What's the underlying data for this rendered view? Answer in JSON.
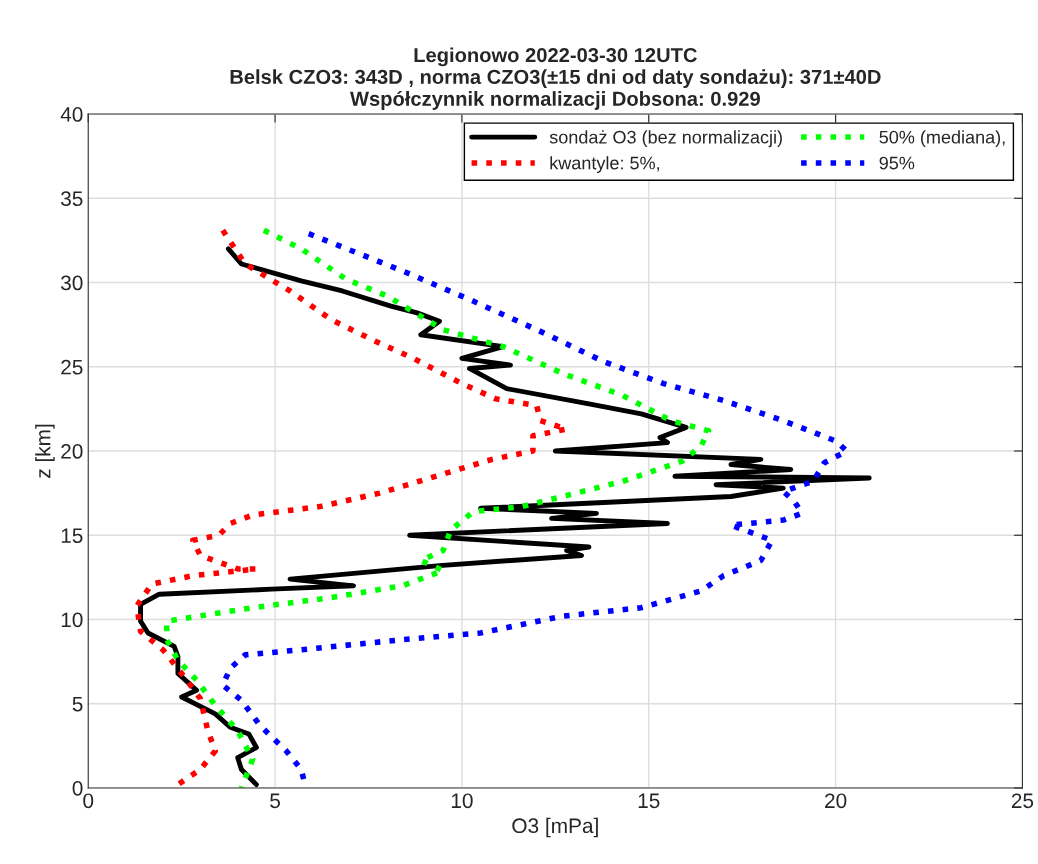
{
  "chart_data": {
    "type": "line",
    "title": "Legionowo 2022-03-30 12UTC\nBelsk CZO3: 343D , norma CZO3(±15 dni od daty sondażu): 371±40D\nWspółczynnik normalizacji Dobsona: 0.929",
    "xlabel": "O3 [mPa]",
    "ylabel": "z [km]",
    "xlim": [
      0,
      25
    ],
    "xticks": [
      0,
      5,
      10,
      15,
      20,
      25
    ],
    "ylim": [
      0,
      40
    ],
    "yticks": [
      0,
      5,
      10,
      15,
      20,
      25,
      30,
      35,
      40
    ],
    "grid": true,
    "legend": "top right",
    "marker": "none",
    "series": [
      {
        "name": "sondaż O3 (bez normalizacji)",
        "color": "#000000",
        "line_style": "solid",
        "x": [
          3.75,
          4.1,
          5.7,
          6.8,
          8.1,
          8.8,
          9.4,
          8.9,
          11.1,
          10.0,
          11.3,
          10.2,
          11.2,
          13.4,
          14.8,
          15.4,
          16.0,
          15.3,
          15.5,
          12.5,
          18.0,
          17.2,
          18.8,
          15.7,
          20.9,
          16.8,
          18.6,
          17.2,
          10.5,
          13.6,
          12.4,
          15.5,
          8.6,
          13.4,
          12.8,
          13.2,
          9.4,
          5.4,
          7.1,
          4.9,
          1.9,
          1.4,
          1.4,
          1.6,
          2.3,
          2.4,
          2.4,
          2.9,
          2.5,
          3.4,
          3.8,
          4.3,
          4.5,
          4.0,
          4.1,
          4.5
        ],
        "values": [
          32.0,
          31.1,
          30.1,
          29.5,
          28.6,
          28.2,
          27.7,
          26.9,
          26.2,
          25.5,
          25.1,
          24.9,
          23.7,
          22.8,
          22.2,
          21.8,
          21.4,
          20.8,
          20.5,
          20.0,
          19.5,
          19.2,
          18.9,
          18.5,
          18.4,
          18.0,
          17.8,
          17.3,
          16.6,
          16.3,
          16.0,
          15.7,
          15.0,
          14.3,
          14.1,
          13.8,
          13.2,
          12.4,
          12.0,
          11.8,
          11.5,
          10.9,
          9.9,
          9.2,
          8.4,
          7.8,
          6.8,
          5.8,
          5.4,
          4.4,
          3.6,
          3.2,
          2.4,
          1.8,
          1.1,
          0.2
        ]
      },
      {
        "name": "kwantyle: 5%,",
        "color": "#ff0000",
        "line_style": "dotted",
        "x": [
          3.6,
          4.2,
          5.4,
          6.5,
          7.7,
          8.7,
          10.0,
          10.9,
          12.0,
          12.1,
          12.8,
          11.9,
          11.9,
          10.8,
          9.6,
          8.4,
          7.8,
          6.2,
          4.4,
          3.8,
          3.5,
          2.8,
          3.0,
          4.0,
          4.5,
          2.8,
          1.7,
          1.3,
          1.4,
          2.0,
          2.5,
          3.0,
          3.2,
          3.4,
          3.0,
          2.4
        ],
        "values": [
          33.1,
          31.1,
          29.5,
          27.8,
          26.5,
          25.5,
          24.0,
          23.1,
          22.7,
          21.8,
          21.3,
          20.9,
          20.0,
          19.5,
          18.7,
          17.9,
          17.5,
          16.7,
          16.2,
          15.7,
          15.0,
          14.7,
          13.8,
          13.0,
          13.0,
          12.6,
          12.1,
          10.8,
          9.3,
          8.2,
          6.8,
          5.3,
          3.4,
          2.2,
          1.1,
          0.2
        ]
      },
      {
        "name": "50% (mediana),",
        "color": "#00ff00",
        "line_style": "dotted",
        "x": [
          4.7,
          5.7,
          6.9,
          8.0,
          9.5,
          11.1,
          12.7,
          14.3,
          15.6,
          16.6,
          16.4,
          15.9,
          14.3,
          12.7,
          11.6,
          10.3,
          9.7,
          9.5,
          8.9,
          9.5,
          8.4,
          6.5,
          4.4,
          2.1,
          2.1,
          2.4,
          2.9,
          3.4,
          4.0,
          4.4,
          4.1
        ],
        "values": [
          33.1,
          32.0,
          30.2,
          29.2,
          27.2,
          26.2,
          24.6,
          23.3,
          21.8,
          21.2,
          20.3,
          19.4,
          18.2,
          17.3,
          16.7,
          16.4,
          15.3,
          14.1,
          13.5,
          12.9,
          12.0,
          11.3,
          10.7,
          9.9,
          8.8,
          7.6,
          6.4,
          4.9,
          3.4,
          1.7,
          0
        ]
      },
      {
        "name": "95%",
        "color": "#0000ff",
        "line_style": "dotted",
        "x": [
          5.9,
          8.4,
          10.3,
          12.1,
          13.8,
          15.4,
          17.0,
          18.6,
          20.0,
          20.3,
          19.7,
          19.4,
          18.6,
          18.9,
          19.1,
          18.6,
          17.2,
          18.3,
          18.0,
          17.0,
          16.4,
          14.8,
          12.7,
          10.5,
          8.4,
          5.7,
          4.2,
          3.8,
          3.6,
          4.1,
          4.6,
          5.3,
          5.7,
          5.8
        ],
        "values": [
          32.9,
          30.7,
          28.9,
          27.1,
          25.3,
          24.0,
          23.0,
          21.8,
          20.6,
          20.0,
          19.3,
          18.2,
          17.6,
          17.0,
          16.3,
          15.9,
          15.6,
          14.7,
          13.5,
          12.6,
          11.7,
          10.7,
          10.2,
          9.2,
          8.8,
          8.2,
          7.9,
          7.1,
          6.1,
          5.2,
          3.7,
          2.2,
          1.1,
          0.2
        ]
      }
    ]
  }
}
